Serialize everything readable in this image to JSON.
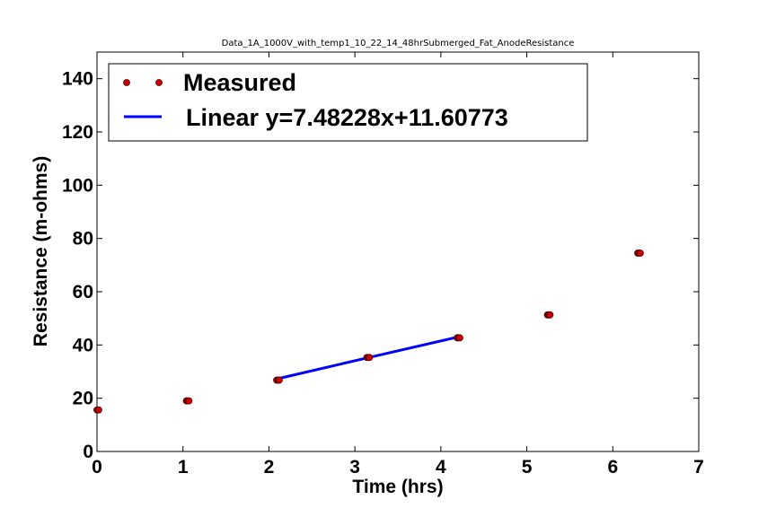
{
  "chart_data": {
    "type": "scatter",
    "title": "Data_1A_1000V_with_temp1_10_22_14_48hrSubmerged_Fat_AnodeResistance",
    "xlabel": "Time (hrs)",
    "ylabel": "Resistance (m-ohms)",
    "xlim": [
      0,
      7
    ],
    "ylim": [
      0,
      150
    ],
    "xticks": [
      "0",
      "1",
      "2",
      "3",
      "4",
      "5",
      "6",
      "7"
    ],
    "yticks": [
      "0",
      "20",
      "40",
      "60",
      "80",
      "100",
      "120",
      "140"
    ],
    "grid": false,
    "legend_position": "top-left",
    "series": [
      {
        "name": "Measured",
        "kind": "scatter",
        "color": "#cc0000",
        "x": [
          0.0,
          0.01,
          0.02,
          1.04,
          1.05,
          1.06,
          1.07,
          2.09,
          2.1,
          2.11,
          2.12,
          3.14,
          3.15,
          3.16,
          3.17,
          4.19,
          4.2,
          4.21,
          4.22,
          5.24,
          5.25,
          5.26,
          5.27,
          6.29,
          6.3,
          6.31,
          6.32
        ],
        "y": [
          15.6,
          15.6,
          15.6,
          19.0,
          19.0,
          19.0,
          19.0,
          26.8,
          26.8,
          26.8,
          26.8,
          35.3,
          35.3,
          35.3,
          35.3,
          42.7,
          42.7,
          42.7,
          42.7,
          51.3,
          51.3,
          51.3,
          51.3,
          74.5,
          74.5,
          74.5,
          74.5
        ]
      },
      {
        "name": "Linear y=7.48228x+11.60773",
        "kind": "line",
        "color": "#0000ff",
        "x": [
          2.1,
          3.15,
          4.2
        ],
        "y": [
          27.3,
          35.2,
          43.0
        ]
      }
    ]
  }
}
